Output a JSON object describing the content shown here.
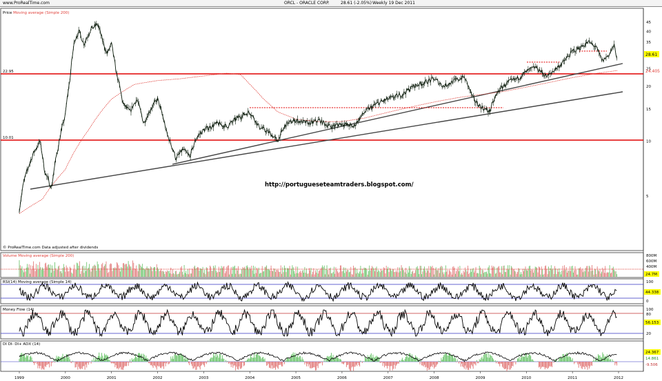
{
  "header": {
    "site": "www.ProRealTime.com",
    "instrument": "ORCL - ORACLE CORP.",
    "last_change": "28.61 (-2.05%)",
    "period": "Weekly 19 Dec 2011"
  },
  "price_panel": {
    "legend_price": "Price",
    "legend_ma": "Moving average (Simple 200)",
    "footer_note": "© ProRealTime.com  Data adjusted after dividends",
    "watermark": "http://portugueseteamtraders.blogspot.com/",
    "last_price_label": "28.61",
    "ma_value_label": "24.405",
    "resistance_labels": [
      "22.95",
      "10.01"
    ]
  },
  "volume_panel": {
    "legend": "Volume  Moving average (Simple 200)",
    "axis_labels": [
      "800M",
      "600M",
      "400M"
    ],
    "value_label": "24.7M"
  },
  "rsi_panel": {
    "legend": "RSI(14)  Moving average (Simple 14)",
    "axis_labels": [
      "100",
      "50",
      "0"
    ],
    "value_label": "44.338"
  },
  "mfi_panel": {
    "legend": "Money Flow (14)",
    "axis_labels": [
      "100",
      "80",
      "20",
      "0"
    ],
    "value_label": "56.153"
  },
  "adx_panel": {
    "legend": "DI  DI-  DI+  ADX (14)",
    "value_labels": [
      "24.367",
      "14.861",
      "-9.506"
    ]
  },
  "colors": {
    "price_bars": "#0a1a0a",
    "moving_average": "#e0403a",
    "trendline": "#444444",
    "resistance": "#e00000",
    "volume_up": "#e07070",
    "volume_down": "#60c060",
    "rsi_line": "#000000",
    "threshold_line": "#3030c0",
    "upper_threshold": "#c03030",
    "adx_line": "#000000",
    "last_value_bg": "#ffff00"
  },
  "chart_data": {
    "type": "line",
    "title": "ORCL - ORACLE CORP.",
    "scale": "log",
    "ylim": [
      3.5,
      50
    ],
    "y_ticks": [
      5,
      10,
      15,
      20,
      25,
      30,
      35,
      40,
      45
    ],
    "x_ticks": [
      "1999",
      "2000",
      "2001",
      "2002",
      "2003",
      "2004",
      "2005",
      "2006",
      "2007",
      "2008",
      "2009",
      "2010",
      "2011",
      "2012"
    ],
    "series": [
      {
        "name": "Price",
        "points": [
          [
            1999.0,
            4.2
          ],
          [
            1999.1,
            6.0
          ],
          [
            1999.3,
            8.5
          ],
          [
            1999.45,
            10.0
          ],
          [
            1999.55,
            6.8
          ],
          [
            1999.7,
            5.5
          ],
          [
            1999.85,
            9.5
          ],
          [
            2000.0,
            14.0
          ],
          [
            2000.1,
            22.0
          ],
          [
            2000.2,
            36.0
          ],
          [
            2000.3,
            40.0
          ],
          [
            2000.4,
            34.0
          ],
          [
            2000.55,
            41.0
          ],
          [
            2000.7,
            44.0
          ],
          [
            2000.8,
            36.0
          ],
          [
            2000.9,
            30.0
          ],
          [
            2001.0,
            34.0
          ],
          [
            2001.1,
            24.0
          ],
          [
            2001.25,
            16.0
          ],
          [
            2001.4,
            14.5
          ],
          [
            2001.55,
            17.0
          ],
          [
            2001.7,
            12.5
          ],
          [
            2001.85,
            15.0
          ],
          [
            2002.0,
            17.0
          ],
          [
            2002.2,
            11.0
          ],
          [
            2002.4,
            8.0
          ],
          [
            2002.55,
            9.0
          ],
          [
            2002.7,
            8.2
          ],
          [
            2002.85,
            10.5
          ],
          [
            2003.0,
            11.5
          ],
          [
            2003.3,
            12.5
          ],
          [
            2003.5,
            12.0
          ],
          [
            2003.75,
            13.5
          ],
          [
            2004.0,
            14.5
          ],
          [
            2004.2,
            12.0
          ],
          [
            2004.45,
            11.0
          ],
          [
            2004.6,
            10.0
          ],
          [
            2004.8,
            12.5
          ],
          [
            2005.0,
            13.0
          ],
          [
            2005.3,
            12.5
          ],
          [
            2005.5,
            13.0
          ],
          [
            2005.75,
            12.0
          ],
          [
            2006.0,
            12.5
          ],
          [
            2006.25,
            12.0
          ],
          [
            2006.5,
            14.5
          ],
          [
            2006.75,
            16.0
          ],
          [
            2007.0,
            17.0
          ],
          [
            2007.3,
            18.0
          ],
          [
            2007.55,
            20.0
          ],
          [
            2007.8,
            21.0
          ],
          [
            2008.0,
            22.0
          ],
          [
            2008.2,
            20.0
          ],
          [
            2008.45,
            21.5
          ],
          [
            2008.65,
            22.5
          ],
          [
            2008.85,
            17.0
          ],
          [
            2009.0,
            15.5
          ],
          [
            2009.2,
            14.5
          ],
          [
            2009.4,
            19.0
          ],
          [
            2009.6,
            21.0
          ],
          [
            2009.8,
            22.0
          ],
          [
            2010.0,
            24.0
          ],
          [
            2010.2,
            25.5
          ],
          [
            2010.45,
            22.5
          ],
          [
            2010.6,
            24.5
          ],
          [
            2010.8,
            27.0
          ],
          [
            2011.0,
            31.0
          ],
          [
            2011.2,
            33.0
          ],
          [
            2011.35,
            35.0
          ],
          [
            2011.5,
            33.0
          ],
          [
            2011.65,
            27.5
          ],
          [
            2011.8,
            30.0
          ],
          [
            2011.9,
            33.5
          ],
          [
            2011.97,
            28.61
          ]
        ]
      },
      {
        "name": "Moving average (Simple 200)",
        "points": [
          [
            1999.0,
            4.0
          ],
          [
            1999.5,
            4.8
          ],
          [
            2000.0,
            7.0
          ],
          [
            2000.5,
            11.5
          ],
          [
            2001.0,
            17.0
          ],
          [
            2001.5,
            20.5
          ],
          [
            2002.0,
            21.5
          ],
          [
            2002.5,
            22.0
          ],
          [
            2003.0,
            22.8
          ],
          [
            2003.5,
            23.6
          ],
          [
            2003.8,
            23.2
          ],
          [
            2004.0,
            20.5
          ],
          [
            2004.3,
            17.0
          ],
          [
            2004.6,
            14.5
          ],
          [
            2005.0,
            13.2
          ],
          [
            2005.5,
            12.8
          ],
          [
            2006.0,
            12.8
          ],
          [
            2006.5,
            13.4
          ],
          [
            2007.0,
            14.4
          ],
          [
            2007.5,
            15.4
          ],
          [
            2008.0,
            16.4
          ],
          [
            2008.5,
            17.3
          ],
          [
            2009.0,
            18.0
          ],
          [
            2009.5,
            18.7
          ],
          [
            2010.0,
            19.8
          ],
          [
            2010.5,
            21.0
          ],
          [
            2011.0,
            22.3
          ],
          [
            2011.5,
            23.5
          ],
          [
            2011.97,
            24.4
          ]
        ]
      }
    ]
  }
}
